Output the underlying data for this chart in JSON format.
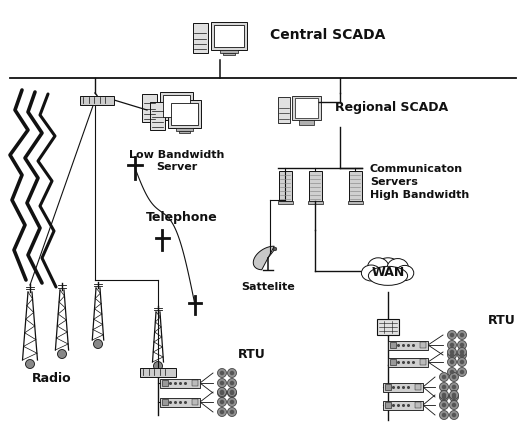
{
  "bg_color": "#ffffff",
  "col": "#111111",
  "labels": {
    "central_scada": "Central SCADA",
    "regional_scada": "Regional SCADA",
    "low_bw_server": "Low Bandwidth\nServer",
    "comm_servers": "Communicaton\nServers\nHigh Bandwidth",
    "wan": "WAN",
    "radio": "Radio",
    "telephone": "Telephone",
    "satellite": "Sattelite",
    "rtu1": "RTU",
    "rtu2": "RTU"
  },
  "figsize": [
    5.26,
    4.34
  ],
  "dpi": 100
}
